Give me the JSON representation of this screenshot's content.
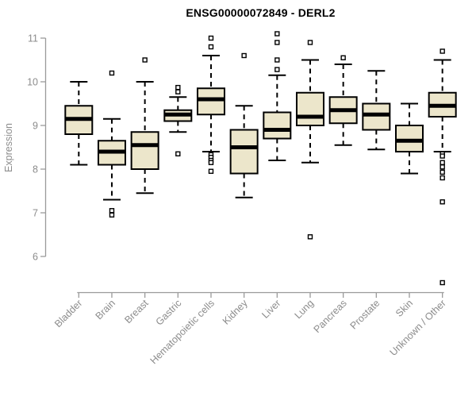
{
  "chart_data": {
    "type": "boxplot",
    "title": "ENSG00000072849 - DERL2",
    "ylabel": "Expression",
    "xlabel": "",
    "ylim": [
      6,
      11
    ],
    "yticks": [
      6,
      7,
      8,
      9,
      10,
      11
    ],
    "grid": false,
    "legend": false,
    "categories": [
      "Bladder",
      "Brain",
      "Breast",
      "Gastric",
      "Hematopoietic cells",
      "Kidney",
      "Liver",
      "Lung",
      "Pancreas",
      "Prostate",
      "Skin",
      "Unknown / Other"
    ],
    "boxes": [
      {
        "category": "Bladder",
        "whisker_low": 8.1,
        "q1": 8.8,
        "median": 9.15,
        "q3": 9.45,
        "whisker_high": 10.0,
        "outliers": []
      },
      {
        "category": "Brain",
        "whisker_low": 7.3,
        "q1": 8.1,
        "median": 8.4,
        "q3": 8.65,
        "whisker_high": 9.15,
        "outliers": [
          10.2,
          7.05,
          6.95
        ]
      },
      {
        "category": "Breast",
        "whisker_low": 7.45,
        "q1": 8.0,
        "median": 8.55,
        "q3": 8.85,
        "whisker_high": 10.0,
        "outliers": [
          10.5
        ]
      },
      {
        "category": "Gastric",
        "whisker_low": 8.85,
        "q1": 9.1,
        "median": 9.25,
        "q3": 9.35,
        "whisker_high": 9.65,
        "outliers": [
          9.87,
          9.77,
          8.35
        ]
      },
      {
        "category": "Hematopoietic cells",
        "whisker_low": 8.4,
        "q1": 9.25,
        "median": 9.6,
        "q3": 9.85,
        "whisker_high": 10.6,
        "outliers": [
          11.0,
          10.8,
          8.33,
          8.27,
          8.2,
          8.15,
          7.95
        ]
      },
      {
        "category": "Kidney",
        "whisker_low": 7.35,
        "q1": 7.9,
        "median": 8.5,
        "q3": 8.9,
        "whisker_high": 9.45,
        "outliers": [
          10.6
        ]
      },
      {
        "category": "Liver",
        "whisker_low": 8.2,
        "q1": 8.7,
        "median": 8.9,
        "q3": 9.3,
        "whisker_high": 10.15,
        "outliers": [
          11.1,
          10.9,
          10.5,
          10.28
        ]
      },
      {
        "category": "Lung",
        "whisker_low": 8.15,
        "q1": 9.0,
        "median": 9.2,
        "q3": 9.75,
        "whisker_high": 10.5,
        "outliers": [
          10.9,
          6.45
        ]
      },
      {
        "category": "Pancreas",
        "whisker_low": 8.55,
        "q1": 9.05,
        "median": 9.35,
        "q3": 9.65,
        "whisker_high": 10.4,
        "outliers": [
          10.55
        ]
      },
      {
        "category": "Prostate",
        "whisker_low": 8.45,
        "q1": 8.9,
        "median": 9.25,
        "q3": 9.5,
        "whisker_high": 10.25,
        "outliers": []
      },
      {
        "category": "Skin",
        "whisker_low": 7.9,
        "q1": 8.4,
        "median": 8.65,
        "q3": 9.0,
        "whisker_high": 9.5,
        "outliers": []
      },
      {
        "category": "Unknown / Other",
        "whisker_low": 8.4,
        "q1": 9.2,
        "median": 9.45,
        "q3": 9.75,
        "whisker_high": 10.5,
        "outliers": [
          10.7,
          8.35,
          8.3,
          8.15,
          8.05,
          7.93,
          7.8,
          7.25,
          5.4
        ]
      }
    ],
    "colors": {
      "box_fill": "#ece6cb",
      "box_border": "#000000",
      "median": "#000000",
      "whisker": "#000000",
      "outlier_fill": "#ffffff",
      "axis": "#9a9a9a",
      "tick_text": "#8c8c8c",
      "title_text": "#000000",
      "background": "#ffffff"
    }
  }
}
